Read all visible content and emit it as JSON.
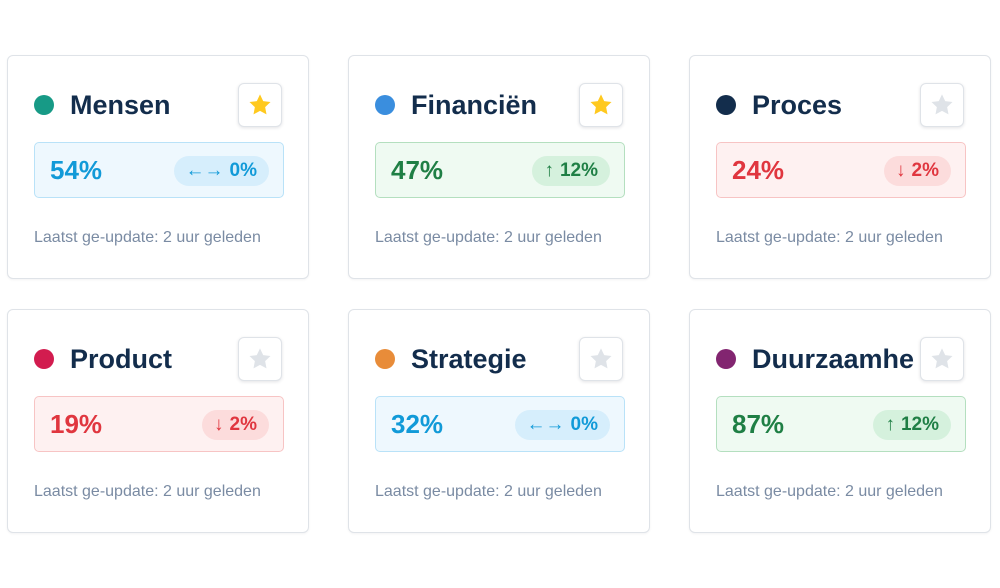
{
  "colors": {
    "star_active": "#ffc91f",
    "star_inactive": "#dfe3e8",
    "title": "#132d4c",
    "muted": "#7a8ba3"
  },
  "cards": [
    {
      "title": "Mensen",
      "dot_color": "#179a86",
      "starred": true,
      "value": "54%",
      "trend": "neutral",
      "delta_arrow": "←→",
      "delta": "0%",
      "updated": "Laatst ge-update: 2 uur geleden"
    },
    {
      "title": "Financiën",
      "dot_color": "#3a8ede",
      "starred": true,
      "value": "47%",
      "trend": "up",
      "delta_arrow": "↑",
      "delta": "12%",
      "updated": "Laatst ge-update: 2 uur geleden"
    },
    {
      "title": "Proces",
      "dot_color": "#132d4c",
      "starred": false,
      "value": "24%",
      "trend": "down",
      "delta_arrow": "↓",
      "delta": "2%",
      "updated": "Laatst ge-update: 2 uur geleden"
    },
    {
      "title": "Product",
      "dot_color": "#d21c4f",
      "starred": false,
      "value": "19%",
      "trend": "down",
      "delta_arrow": "↓",
      "delta": "2%",
      "updated": "Laatst ge-update: 2 uur geleden"
    },
    {
      "title": "Strategie",
      "dot_color": "#e88c39",
      "starred": false,
      "value": "32%",
      "trend": "neutral",
      "delta_arrow": "←→",
      "delta": "0%",
      "updated": "Laatst ge-update: 2 uur geleden"
    },
    {
      "title": "Duurzaamhe",
      "dot_color": "#822570",
      "starred": false,
      "value": "87%",
      "trend": "up",
      "delta_arrow": "↑",
      "delta": "12%",
      "updated": "Laatst ge-update: 2 uur geleden"
    }
  ]
}
